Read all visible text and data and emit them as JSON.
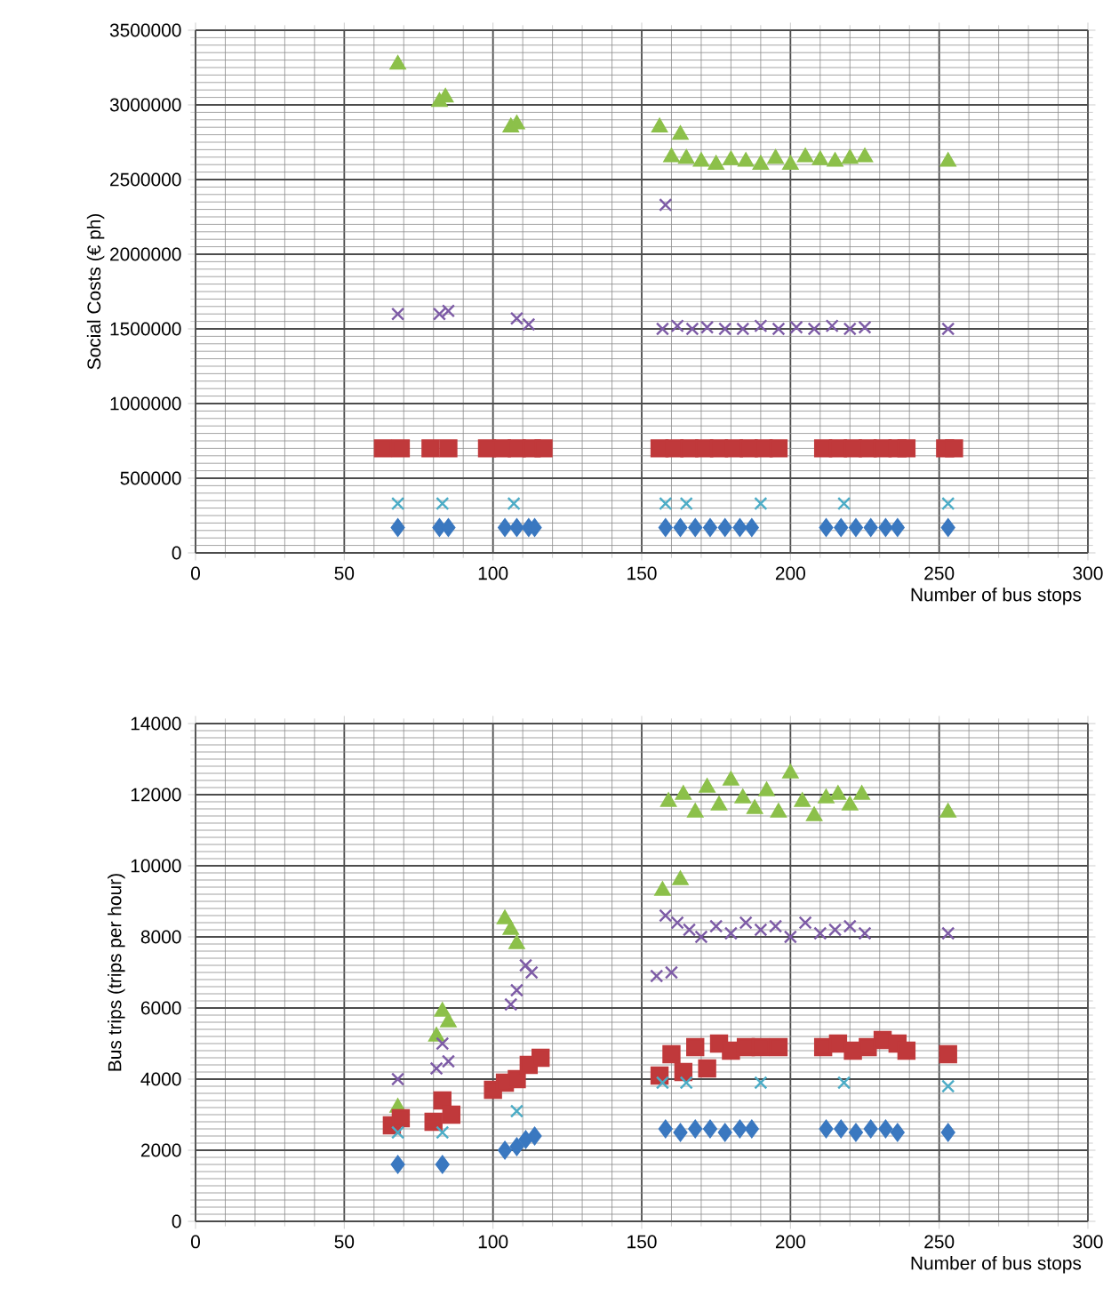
{
  "chart_data": [
    {
      "type": "scatter",
      "xlabel": "Number of bus stops",
      "ylabel": "Social Costs (€ ph)",
      "xlim": [
        0,
        300
      ],
      "xticks": [
        0,
        50,
        100,
        150,
        200,
        250,
        300
      ],
      "ylim": [
        0,
        3500000
      ],
      "yticks": [
        0,
        500000,
        1000000,
        1500000,
        2000000,
        2500000,
        3000000,
        3500000
      ],
      "grid": true,
      "series": [
        {
          "color": "#8cc04a",
          "marker": "triangle",
          "x": [
            68,
            82,
            84,
            106,
            108,
            156,
            163,
            160,
            165,
            170,
            175,
            180,
            185,
            190,
            195,
            200,
            205,
            210,
            215,
            220,
            225,
            253
          ],
          "values": [
            3270000,
            3020000,
            3050000,
            2850000,
            2870000,
            2850000,
            2800000,
            2650000,
            2640000,
            2620000,
            2600000,
            2630000,
            2620000,
            2600000,
            2640000,
            2600000,
            2650000,
            2630000,
            2620000,
            2640000,
            2650000,
            2620000
          ]
        },
        {
          "color": "#7d5ba6",
          "marker": "cross",
          "x": [
            68,
            82,
            85,
            108,
            112,
            158,
            157,
            162,
            167,
            172,
            178,
            184,
            190,
            196,
            202,
            208,
            214,
            220,
            225,
            253
          ],
          "values": [
            1600000,
            1600000,
            1620000,
            1570000,
            1530000,
            2330000,
            1500000,
            1520000,
            1500000,
            1510000,
            1500000,
            1500000,
            1520000,
            1500000,
            1510000,
            1500000,
            1520000,
            1500000,
            1510000,
            1500000
          ]
        },
        {
          "color": "#c0393b",
          "marker": "square",
          "x": [
            63,
            69,
            79,
            85,
            98,
            103,
            108,
            113,
            117,
            156,
            161,
            166,
            171,
            176,
            181,
            186,
            191,
            196,
            211,
            216,
            221,
            226,
            231,
            236,
            239,
            252,
            255
          ],
          "values": [
            700000,
            700000,
            700000,
            700000,
            700000,
            700000,
            700000,
            700000,
            700000,
            700000,
            700000,
            700000,
            700000,
            700000,
            700000,
            700000,
            700000,
            700000,
            700000,
            700000,
            700000,
            700000,
            700000,
            700000,
            700000,
            700000,
            700000
          ]
        },
        {
          "color": "#4bacc6",
          "marker": "cross",
          "x": [
            68,
            83,
            107,
            158,
            165,
            190,
            218,
            253
          ],
          "values": [
            330000,
            330000,
            330000,
            330000,
            330000,
            330000,
            330000,
            330000
          ]
        },
        {
          "color": "#3a78c0",
          "marker": "diamond",
          "x": [
            68,
            82,
            85,
            104,
            108,
            112,
            114,
            158,
            163,
            168,
            173,
            178,
            183,
            187,
            212,
            217,
            222,
            227,
            232,
            236,
            253
          ],
          "values": [
            170000,
            170000,
            170000,
            170000,
            170000,
            170000,
            170000,
            170000,
            170000,
            170000,
            170000,
            170000,
            170000,
            170000,
            170000,
            170000,
            170000,
            170000,
            170000,
            170000,
            170000
          ]
        }
      ]
    },
    {
      "type": "scatter",
      "xlabel": "Number of bus stops",
      "ylabel": "Bus trips (trips per hour)",
      "xlim": [
        0,
        300
      ],
      "xticks": [
        0,
        50,
        100,
        150,
        200,
        250,
        300
      ],
      "ylim": [
        0,
        14000
      ],
      "yticks": [
        0,
        2000,
        4000,
        6000,
        8000,
        10000,
        12000,
        14000
      ],
      "grid": true,
      "series": [
        {
          "color": "#8cc04a",
          "marker": "triangle",
          "x": [
            68,
            81,
            83,
            85,
            104,
            106,
            108,
            157,
            163,
            159,
            164,
            168,
            172,
            176,
            180,
            184,
            188,
            192,
            196,
            200,
            204,
            208,
            212,
            216,
            220,
            224,
            253
          ],
          "values": [
            3200,
            5200,
            5900,
            5600,
            8500,
            8200,
            7800,
            9300,
            9600,
            11800,
            12000,
            11500,
            12200,
            11700,
            12400,
            11900,
            11600,
            12100,
            11500,
            12600,
            11800,
            11400,
            11900,
            12000,
            11700,
            12000,
            11500
          ]
        },
        {
          "color": "#7d5ba6",
          "marker": "cross",
          "x": [
            68,
            81,
            83,
            85,
            106,
            108,
            111,
            113,
            155,
            160,
            158,
            162,
            166,
            170,
            175,
            180,
            185,
            190,
            195,
            200,
            205,
            210,
            215,
            220,
            225,
            253
          ],
          "values": [
            4000,
            4300,
            5000,
            4500,
            6100,
            6500,
            7200,
            7000,
            6900,
            7000,
            8600,
            8400,
            8200,
            8000,
            8300,
            8100,
            8400,
            8200,
            8300,
            8000,
            8400,
            8100,
            8200,
            8300,
            8100,
            8100
          ]
        },
        {
          "color": "#c0393b",
          "marker": "square",
          "x": [
            66,
            69,
            80,
            83,
            86,
            100,
            104,
            108,
            112,
            116,
            156,
            160,
            164,
            168,
            172,
            176,
            180,
            185,
            190,
            196,
            211,
            216,
            221,
            226,
            231,
            236,
            239,
            253
          ],
          "values": [
            2700,
            2900,
            2800,
            3400,
            3000,
            3700,
            3900,
            4000,
            4400,
            4600,
            4100,
            4700,
            4200,
            4900,
            4300,
            5000,
            4800,
            4900,
            4900,
            4900,
            4900,
            5000,
            4800,
            4900,
            5100,
            5000,
            4800,
            4700
          ]
        },
        {
          "color": "#4bacc6",
          "marker": "cross",
          "x": [
            68,
            83,
            108,
            157,
            165,
            190,
            218,
            253
          ],
          "values": [
            2500,
            2500,
            3100,
            3900,
            3900,
            3900,
            3900,
            3800
          ]
        },
        {
          "color": "#3a78c0",
          "marker": "diamond",
          "x": [
            68,
            83,
            104,
            108,
            111,
            114,
            158,
            163,
            168,
            173,
            178,
            183,
            187,
            212,
            217,
            222,
            227,
            232,
            236,
            253
          ],
          "values": [
            1600,
            1600,
            2000,
            2100,
            2300,
            2400,
            2600,
            2500,
            2600,
            2600,
            2500,
            2600,
            2600,
            2600,
            2600,
            2500,
            2600,
            2600,
            2500,
            2500
          ]
        }
      ]
    }
  ]
}
